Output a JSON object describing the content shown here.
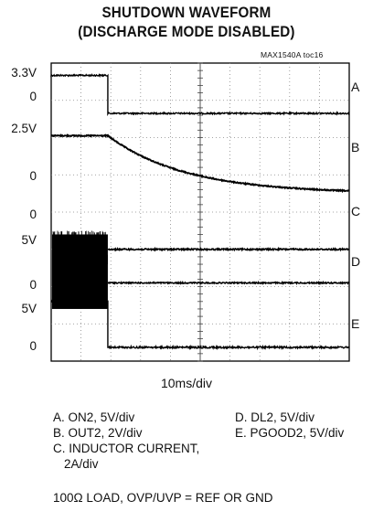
{
  "chart_data": {
    "type": "line",
    "title": [
      "SHUTDOWN WAVEFORM",
      "(DISCHARGE MODE DISABLED)"
    ],
    "figure_id": "MAX1540A toc16",
    "timebase": "10ms/div",
    "grid": true,
    "divisions": {
      "x": 10,
      "y": 8
    },
    "shutdown_time_div": 1.9,
    "traces": [
      {
        "id": "A",
        "y_labels": [
          "3.3V",
          "0"
        ],
        "kind": "step",
        "high_div": 0.33,
        "low_div": 1.35
      },
      {
        "id": "B",
        "y_labels": [
          "2.5V",
          "0"
        ],
        "kind": "decay",
        "high_div": 1.95,
        "low_div": 3.5,
        "tau_div": 2.6
      },
      {
        "id": "C",
        "y_labels": [
          "0"
        ],
        "kind": "switching",
        "base_div": 5.0,
        "band_div": [
          4.6,
          5.4
        ]
      },
      {
        "id": "D",
        "y_labels": [
          "5V",
          "0"
        ],
        "kind": "switching_pwm",
        "base_div": 5.9,
        "band_div": [
          5.15,
          6.6
        ]
      },
      {
        "id": "E",
        "y_labels": [
          "5V",
          "0"
        ],
        "kind": "step",
        "high_div": 6.4,
        "low_div": 7.63
      }
    ],
    "legend": [
      "A. ON2, 5V/div",
      "B. OUT2, 2V/div",
      "C. INDUCTOR CURRENT,",
      "2A/div",
      "D. DL2, 5V/div",
      "E. PGOOD2, 5V/div"
    ],
    "footnote": "100Ω LOAD, OVP/UVP = REF OR GND"
  }
}
